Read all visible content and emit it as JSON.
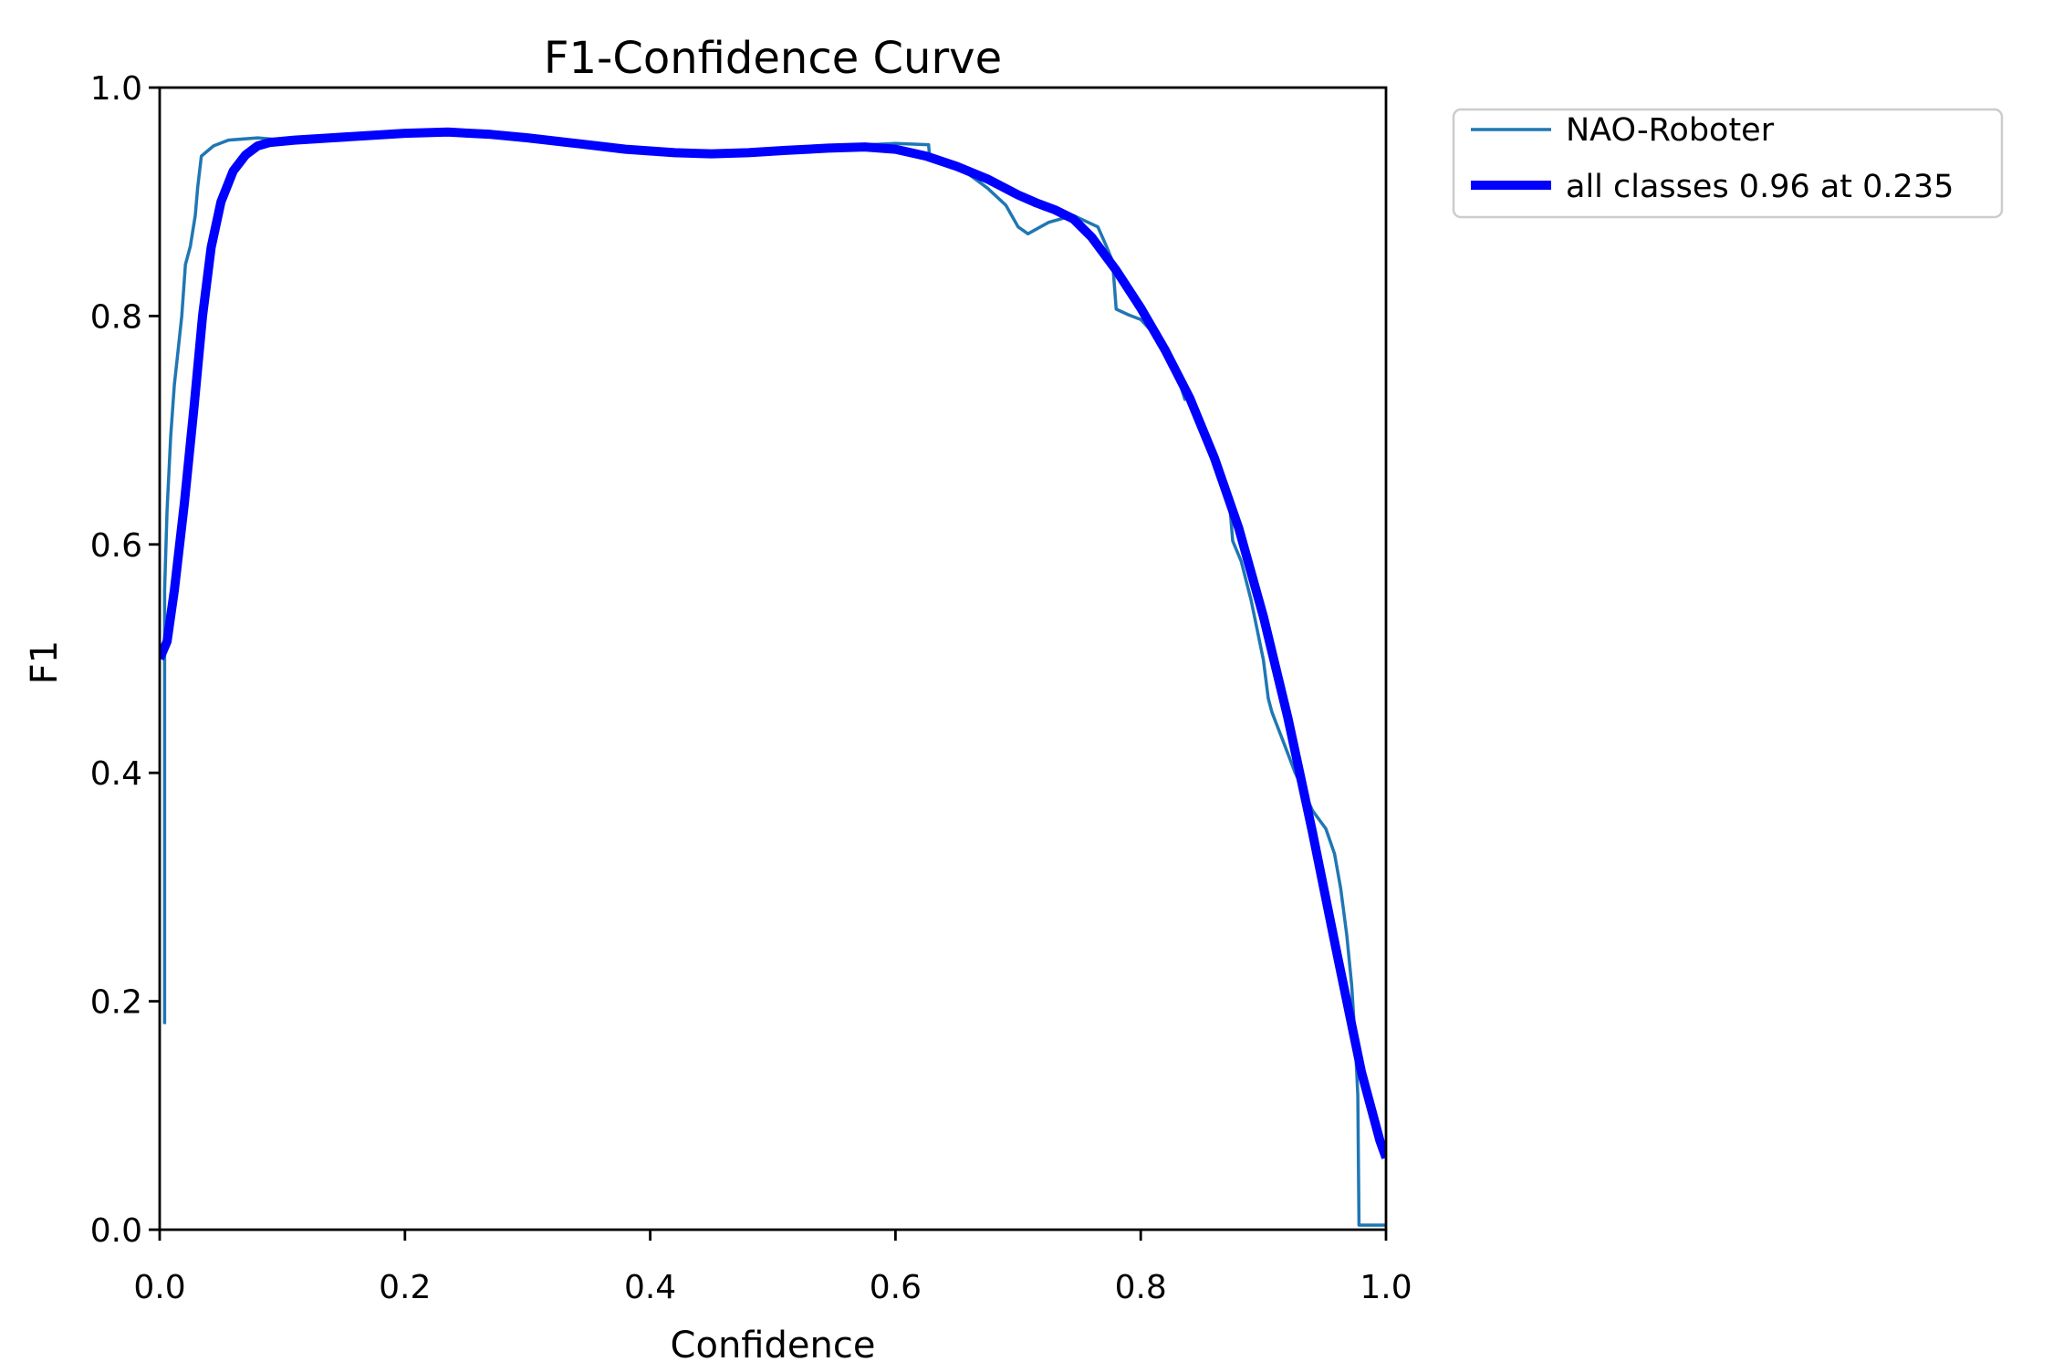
{
  "figure": {
    "background": "#ffffff"
  },
  "chart_data": {
    "type": "line",
    "title": "F1-Confidence Curve",
    "xlabel": "Confidence",
    "ylabel": "F1",
    "xlim": [
      0.0,
      1.0
    ],
    "ylim": [
      0.0,
      1.0
    ],
    "xticks": [
      "0.0",
      "0.2",
      "0.4",
      "0.6",
      "0.8",
      "1.0"
    ],
    "yticks": [
      "0.0",
      "0.2",
      "0.4",
      "0.6",
      "0.8",
      "1.0"
    ],
    "grid": false,
    "legend_position": "outside-upper-right",
    "axis_color": "#000000",
    "series": [
      {
        "name": "NAO-Roboter",
        "color": "#1f77b4",
        "stroke_width": 3.5,
        "points": [
          [
            0.004,
            0.18
          ],
          [
            0.004,
            0.56
          ],
          [
            0.006,
            0.63
          ],
          [
            0.009,
            0.695
          ],
          [
            0.012,
            0.74
          ],
          [
            0.015,
            0.77
          ],
          [
            0.018,
            0.8
          ],
          [
            0.021,
            0.845
          ],
          [
            0.025,
            0.861
          ],
          [
            0.029,
            0.888
          ],
          [
            0.031,
            0.913
          ],
          [
            0.034,
            0.94
          ],
          [
            0.044,
            0.949
          ],
          [
            0.056,
            0.954
          ],
          [
            0.08,
            0.956
          ],
          [
            0.11,
            0.953
          ],
          [
            0.15,
            0.956
          ],
          [
            0.2,
            0.958
          ],
          [
            0.24,
            0.959
          ],
          [
            0.28,
            0.956
          ],
          [
            0.32,
            0.952
          ],
          [
            0.36,
            0.948
          ],
          [
            0.4,
            0.944
          ],
          [
            0.44,
            0.941
          ],
          [
            0.48,
            0.943
          ],
          [
            0.52,
            0.946
          ],
          [
            0.56,
            0.949
          ],
          [
            0.6,
            0.951
          ],
          [
            0.627,
            0.95
          ],
          [
            0.628,
            0.937
          ],
          [
            0.645,
            0.932
          ],
          [
            0.66,
            0.924
          ],
          [
            0.675,
            0.912
          ],
          [
            0.69,
            0.897
          ],
          [
            0.7,
            0.878
          ],
          [
            0.708,
            0.872
          ],
          [
            0.725,
            0.882
          ],
          [
            0.745,
            0.888
          ],
          [
            0.765,
            0.878
          ],
          [
            0.772,
            0.861
          ],
          [
            0.777,
            0.848
          ],
          [
            0.78,
            0.806
          ],
          [
            0.79,
            0.801
          ],
          [
            0.8,
            0.797
          ],
          [
            0.812,
            0.783
          ],
          [
            0.822,
            0.766
          ],
          [
            0.831,
            0.744
          ],
          [
            0.836,
            0.727
          ],
          [
            0.838,
            0.736
          ],
          [
            0.842,
            0.718
          ],
          [
            0.851,
            0.698
          ],
          [
            0.861,
            0.67
          ],
          [
            0.868,
            0.653
          ],
          [
            0.871,
            0.647
          ],
          [
            0.873,
            0.629
          ],
          [
            0.875,
            0.603
          ],
          [
            0.882,
            0.585
          ],
          [
            0.89,
            0.551
          ],
          [
            0.9,
            0.499
          ],
          [
            0.904,
            0.465
          ],
          [
            0.907,
            0.453
          ],
          [
            0.916,
            0.428
          ],
          [
            0.926,
            0.4
          ],
          [
            0.94,
            0.367
          ],
          [
            0.951,
            0.351
          ],
          [
            0.958,
            0.329
          ],
          [
            0.963,
            0.299
          ],
          [
            0.968,
            0.258
          ],
          [
            0.972,
            0.214
          ],
          [
            0.975,
            0.163
          ],
          [
            0.977,
            0.118
          ],
          [
            0.978,
            0.004
          ],
          [
            1.0,
            0.004
          ]
        ]
      },
      {
        "name": "all classes 0.96 at 0.235",
        "color": "#0000ff",
        "stroke_width": 10,
        "points": [
          [
            0.0,
            0.5
          ],
          [
            0.006,
            0.515
          ],
          [
            0.012,
            0.56
          ],
          [
            0.02,
            0.635
          ],
          [
            0.028,
            0.72
          ],
          [
            0.035,
            0.8
          ],
          [
            0.042,
            0.86
          ],
          [
            0.05,
            0.9
          ],
          [
            0.06,
            0.927
          ],
          [
            0.07,
            0.941
          ],
          [
            0.08,
            0.949
          ],
          [
            0.09,
            0.952
          ],
          [
            0.11,
            0.954
          ],
          [
            0.14,
            0.956
          ],
          [
            0.17,
            0.958
          ],
          [
            0.2,
            0.96
          ],
          [
            0.235,
            0.961
          ],
          [
            0.27,
            0.959
          ],
          [
            0.3,
            0.956
          ],
          [
            0.34,
            0.951
          ],
          [
            0.38,
            0.946
          ],
          [
            0.42,
            0.943
          ],
          [
            0.45,
            0.942
          ],
          [
            0.48,
            0.943
          ],
          [
            0.51,
            0.945
          ],
          [
            0.545,
            0.947
          ],
          [
            0.575,
            0.948
          ],
          [
            0.6,
            0.946
          ],
          [
            0.625,
            0.94
          ],
          [
            0.65,
            0.931
          ],
          [
            0.675,
            0.92
          ],
          [
            0.7,
            0.906
          ],
          [
            0.715,
            0.899
          ],
          [
            0.73,
            0.893
          ],
          [
            0.745,
            0.885
          ],
          [
            0.76,
            0.869
          ],
          [
            0.78,
            0.84
          ],
          [
            0.8,
            0.807
          ],
          [
            0.82,
            0.77
          ],
          [
            0.84,
            0.728
          ],
          [
            0.86,
            0.676
          ],
          [
            0.88,
            0.614
          ],
          [
            0.9,
            0.537
          ],
          [
            0.92,
            0.448
          ],
          [
            0.94,
            0.348
          ],
          [
            0.96,
            0.242
          ],
          [
            0.98,
            0.138
          ],
          [
            0.995,
            0.078
          ],
          [
            1.0,
            0.063
          ]
        ]
      }
    ],
    "legend": {
      "border_color": "#cccccc",
      "fill_color": "#ffffff"
    }
  }
}
